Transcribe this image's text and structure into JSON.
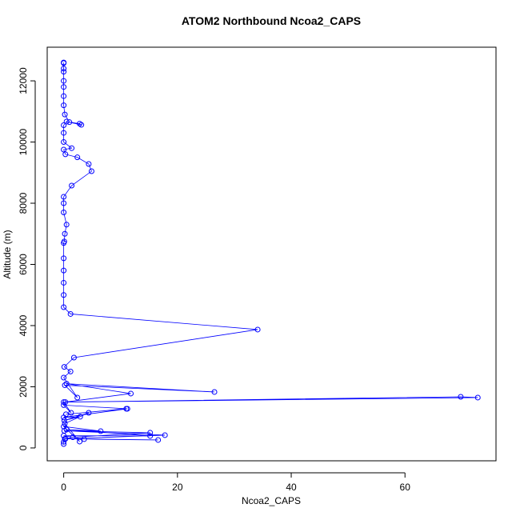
{
  "chart_data": {
    "type": "line",
    "title": "ATOM2 Northbound Ncoa2_CAPS",
    "x_label": "Ncoa2_CAPS",
    "y_label": "Altitude (m)",
    "x": [
      0,
      0,
      0.2,
      1.6,
      15.2,
      0.1,
      17.8,
      0.3,
      16.6,
      3.6,
      0,
      15.2,
      0.5,
      6.5,
      0,
      2.8,
      0.2,
      4.4,
      0.1,
      2.9,
      0,
      11.2,
      0.4,
      11,
      0,
      1.3,
      0,
      72.8,
      69.8,
      0.3,
      11.8,
      0.5,
      26.5,
      0.2,
      2.4,
      0,
      1.2,
      0.1,
      1.8,
      34.1,
      1.2,
      0,
      0,
      0,
      0,
      0,
      0,
      0.1,
      0.2,
      0.5,
      0,
      0,
      0,
      1.4,
      4.9,
      4.4,
      2.4,
      0.3,
      0,
      1.4,
      0,
      0,
      0,
      0.5,
      3.1,
      2.8,
      1,
      0.2,
      0,
      0,
      0,
      0,
      0,
      0,
      0,
      0
    ],
    "values": [
      130,
      200,
      300,
      350,
      497,
      560,
      418,
      300,
      261,
      288,
      400,
      392,
      600,
      549,
      700,
      209,
      800,
      1150,
      900,
      1020,
      1000,
      1281,
      1100,
      1281,
      1400,
      1150,
      1500,
      1647,
      1673,
      1500,
      1778,
      2100,
      1830,
      2050,
      1647,
      2300,
      2500,
      2650,
      2954,
      3870,
      4380,
      4600,
      5000,
      5400,
      5800,
      6200,
      6700,
      6750,
      7000,
      7300,
      7700,
      8000,
      8209,
      8575,
      9046,
      9281,
      9500,
      9600,
      9752,
      9800,
      10000,
      10300,
      10550,
      10667,
      10562,
      10600,
      10650,
      10900,
      11200,
      11500,
      11800,
      12000,
      12300,
      12400,
      12580,
      12600
    ],
    "color": "#0000ff",
    "xlim": [
      -2.9,
      76
    ],
    "xticks": [
      0,
      20,
      40,
      60
    ],
    "ylim": [
      -420,
      13100
    ],
    "yticks": [
      0,
      2000,
      4000,
      6000,
      8000,
      10000,
      12000
    ]
  }
}
